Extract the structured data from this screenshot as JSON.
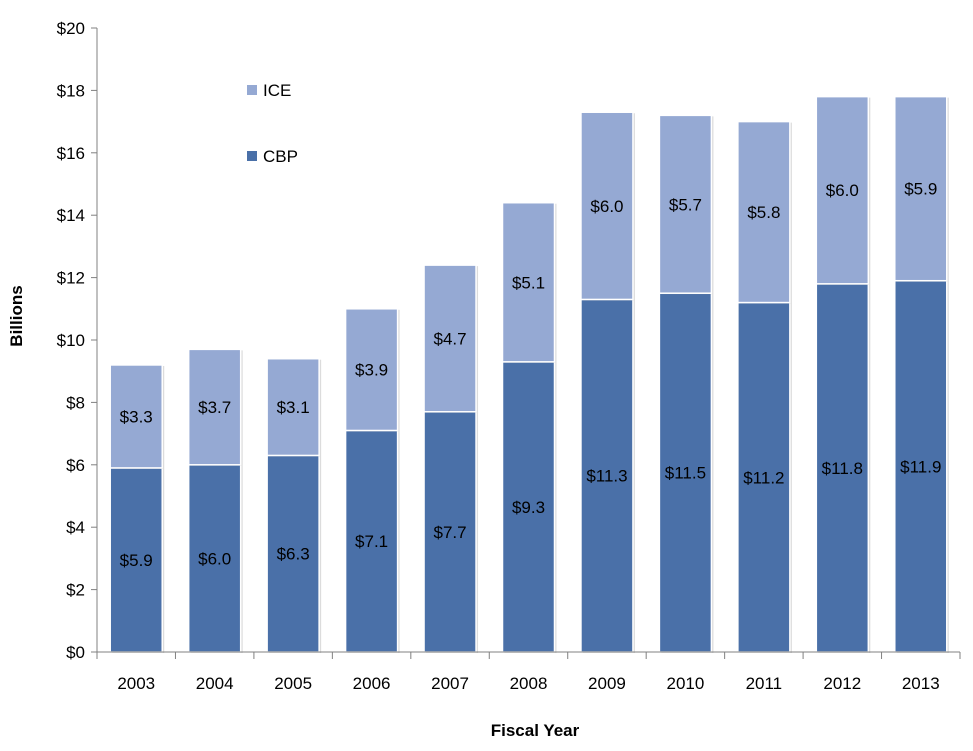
{
  "chart_data": {
    "type": "bar",
    "stacked": true,
    "categories": [
      "2003",
      "2004",
      "2005",
      "2006",
      "2007",
      "2008",
      "2009",
      "2010",
      "2011",
      "2012",
      "2013"
    ],
    "series": [
      {
        "name": "CBP",
        "color": "#4a70a8",
        "values": [
          5.9,
          6.0,
          6.3,
          7.1,
          7.7,
          9.3,
          11.3,
          11.5,
          11.2,
          11.8,
          11.9
        ]
      },
      {
        "name": "ICE",
        "color": "#95a9d3",
        "values": [
          3.3,
          3.7,
          3.1,
          3.9,
          4.7,
          5.1,
          6.0,
          5.7,
          5.8,
          6.0,
          5.9
        ]
      }
    ],
    "data_labels": {
      "CBP": [
        "$5.9",
        "$6.0",
        "$6.3",
        "$7.1",
        "$7.7",
        "$9.3",
        "$11.3",
        "$11.5",
        "$11.2",
        "$11.8",
        "$11.9"
      ],
      "ICE": [
        "$3.3",
        "$3.7",
        "$3.1",
        "$3.9",
        "$4.7",
        "$5.1",
        "$6.0",
        "$5.7",
        "$5.8",
        "$6.0",
        "$5.9"
      ]
    },
    "ylim": [
      0,
      20
    ],
    "yticks": [
      0,
      2,
      4,
      6,
      8,
      10,
      12,
      14,
      16,
      18,
      20
    ],
    "ytick_labels": [
      "$0",
      "$2",
      "$4",
      "$6",
      "$8",
      "$10",
      "$12",
      "$14",
      "$16",
      "$18",
      "$20"
    ],
    "xlabel": "Fiscal Year",
    "ylabel": "Billions",
    "legend": {
      "placement": "top-left",
      "order": [
        "ICE",
        "CBP"
      ]
    },
    "grid": false
  }
}
